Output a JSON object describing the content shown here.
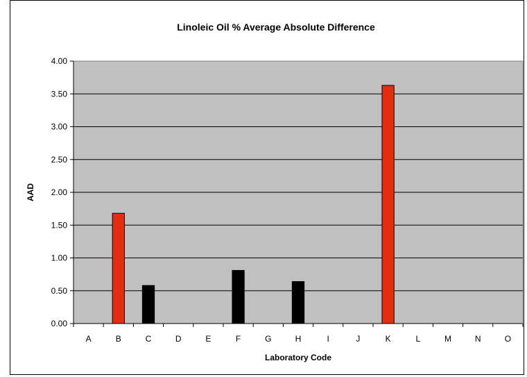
{
  "chart_data": {
    "type": "bar",
    "title": "Linoleic Oil % Average Absolute Difference",
    "xlabel": "Laboratory Code",
    "ylabel": "AAD",
    "categories": [
      "A",
      "B",
      "C",
      "D",
      "E",
      "F",
      "G",
      "H",
      "I",
      "J",
      "K",
      "L",
      "M",
      "N",
      "O"
    ],
    "values": [
      0,
      1.68,
      0.58,
      0,
      0,
      0.81,
      0,
      0.64,
      0,
      0,
      3.63,
      0,
      0,
      0,
      0
    ],
    "bar_colors": [
      "#000000",
      "#e52e0e",
      "#000000",
      "#000000",
      "#000000",
      "#000000",
      "#000000",
      "#000000",
      "#000000",
      "#000000",
      "#e52e0e",
      "#000000",
      "#000000",
      "#000000",
      "#000000"
    ],
    "ylim": [
      0,
      4
    ],
    "yticks": [
      "0.00",
      "0.50",
      "1.00",
      "1.50",
      "2.00",
      "2.50",
      "3.00",
      "3.50",
      "4.00"
    ],
    "grid": true,
    "plot_background": "#c0c0c0",
    "legend": "none"
  }
}
